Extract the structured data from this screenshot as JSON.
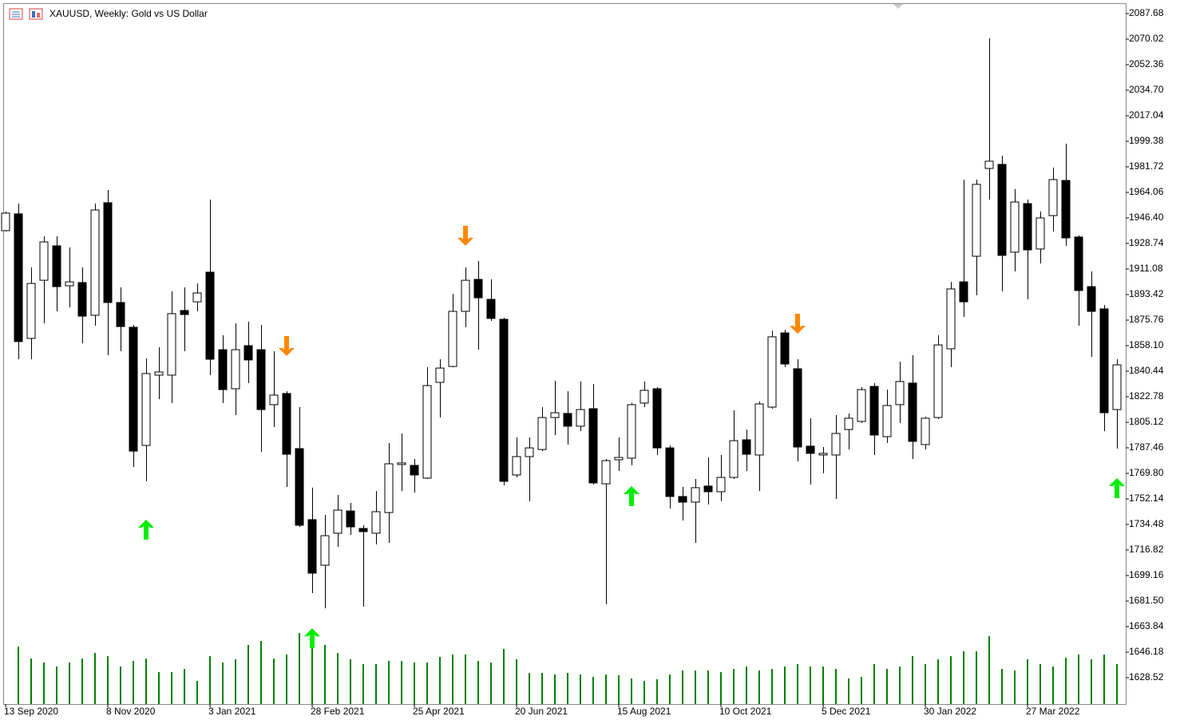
{
  "chart_data": {
    "type": "candlestick",
    "title": "XAUUSD, Weekly:  Gold vs US Dollar",
    "categories": [
      "13 Sep 2020",
      null,
      null,
      null,
      null,
      null,
      null,
      null,
      "8 Nov 2020",
      null,
      null,
      null,
      null,
      null,
      null,
      null,
      "3 Jan 2021",
      null,
      null,
      null,
      null,
      null,
      null,
      null,
      "28 Feb 2021",
      null,
      null,
      null,
      null,
      null,
      null,
      null,
      "25 Apr 2021",
      null,
      null,
      null,
      null,
      null,
      null,
      null,
      "20 Jun 2021",
      null,
      null,
      null,
      null,
      null,
      null,
      null,
      "15 Aug 2021",
      null,
      null,
      null,
      null,
      null,
      null,
      null,
      "10 Oct 2021",
      null,
      null,
      null,
      null,
      null,
      null,
      null,
      "5 Dec 2021",
      null,
      null,
      null,
      null,
      null,
      null,
      null,
      "30 Jan 2022",
      null,
      null,
      null,
      null,
      null,
      null,
      null,
      "27 Mar 2022",
      null,
      null,
      null,
      null,
      null,
      null,
      null
    ],
    "open": [
      1937.6,
      1949.2,
      1863.1,
      1903.3,
      1927.1,
      1899.5,
      1901.7,
      1879.1,
      1956.9,
      1887.9,
      1870.8,
      1789.1,
      1837.7,
      1837.7,
      1882.4,
      1888.4,
      1908.9,
      1855.3,
      1828.3,
      1858.1,
      1855.3,
      1817.3,
      1825.0,
      1786.9,
      1737.8,
      1706.3,
      1728.4,
      1743.8,
      1731.7,
      1728.4,
      1742.7,
      1775.9,
      1775.3,
      1766.5,
      1832.7,
      1843.7,
      1881.8,
      1903.9,
      1890.1,
      1876.3,
      1768.7,
      1781.4,
      1786.3,
      1808.4,
      1811.2,
      1802.4,
      1814.5,
      1762.6,
      1779.2,
      1780.3,
      1818.4,
      1828.3,
      1787.4,
      1753.8,
      1749.9,
      1761.0,
      1757.1,
      1767.0,
      1793.0,
      1782.5,
      1815.6,
      1866.9,
      1842.1,
      1788.6,
      1782.5,
      1782.5,
      1800.1,
      1805.7,
      1829.9,
      1795.2,
      1817.3,
      1832.2,
      1789.7,
      1808.4,
      1855.9,
      1902.2,
      1919.9,
      1980.6,
      1983.4,
      1922.7,
      1956.3,
      1924.9,
      1948.0,
      1972.3,
      1933.2,
      1898.9,
      1883.5,
      1813.9
    ],
    "high": [
      1950.8,
      1956.3,
      1912.2,
      1933.7,
      1933.7,
      1926.0,
      1912.2,
      1956.3,
      1965.7,
      1898.4,
      1872.4,
      1849.3,
      1857.0,
      1895.6,
      1898.4,
      1901.1,
      1959.1,
      1865.3,
      1873.5,
      1874.6,
      1872.4,
      1854.2,
      1826.6,
      1815.6,
      1759.9,
      1741.1,
      1754.9,
      1749.4,
      1733.9,
      1757.6,
      1790.8,
      1797.4,
      1779.7,
      1843.2,
      1848.7,
      1894.0,
      1912.2,
      1916.6,
      1903.9,
      1877.4,
      1794.6,
      1794.6,
      1815.6,
      1833.8,
      1826.6,
      1833.3,
      1831.6,
      1779.7,
      1794.6,
      1818.4,
      1833.3,
      1829.4,
      1789.1,
      1760.4,
      1765.9,
      1780.8,
      1782.5,
      1813.4,
      1800.1,
      1819.5,
      1868.6,
      1869.1,
      1848.7,
      1807.9,
      1788.0,
      1810.1,
      1811.2,
      1829.4,
      1832.2,
      1827.7,
      1847.0,
      1851.5,
      1809.0,
      1865.3,
      1902.2,
      1972.9,
      1972.9,
      2070.6,
      1989.4,
      1966.3,
      1959.1,
      1950.8,
      1981.2,
      1997.7,
      1934.3,
      1909.4,
      1886.2,
      1848.7
    ],
    "low": [
      1937.0,
      1848.7,
      1848.7,
      1873.5,
      1881.8,
      1884.6,
      1859.7,
      1871.9,
      1851.5,
      1854.2,
      1774.2,
      1764.3,
      1821.1,
      1818.4,
      1854.2,
      1881.8,
      1837.7,
      1818.4,
      1810.1,
      1832.2,
      1784.7,
      1801.8,
      1760.4,
      1732.8,
      1687.0,
      1676.5,
      1719.0,
      1727.3,
      1677.6,
      1720.7,
      1721.8,
      1757.6,
      1756.5,
      1765.9,
      1808.4,
      1843.2,
      1870.8,
      1855.3,
      1875.2,
      1761.5,
      1767.0,
      1750.5,
      1785.2,
      1796.3,
      1789.7,
      1799.0,
      1762.1,
      1679.3,
      1771.4,
      1775.3,
      1815.6,
      1782.5,
      1745.5,
      1737.2,
      1721.8,
      1748.3,
      1750.5,
      1765.9,
      1771.4,
      1757.6,
      1814.5,
      1843.2,
      1778.1,
      1762.1,
      1769.8,
      1752.1,
      1786.3,
      1804.6,
      1782.5,
      1790.8,
      1804.6,
      1779.7,
      1786.3,
      1807.3,
      1843.2,
      1878.0,
      1892.9,
      1959.1,
      1895.6,
      1909.4,
      1890.1,
      1914.9,
      1937.0,
      1927.1,
      1871.9,
      1850.4,
      1799.0,
      1786.9
    ],
    "close": [
      1949.7,
      1860.9,
      1901.1,
      1929.8,
      1898.9,
      1902.2,
      1878.5,
      1951.9,
      1887.9,
      1871.3,
      1785.2,
      1838.8,
      1839.9,
      1880.2,
      1879.6,
      1894.5,
      1848.7,
      1827.7,
      1855.3,
      1848.2,
      1813.9,
      1823.9,
      1783.0,
      1733.9,
      1700.8,
      1726.7,
      1744.4,
      1732.8,
      1729.5,
      1743.3,
      1776.4,
      1777.0,
      1768.7,
      1830.5,
      1842.6,
      1881.8,
      1903.3,
      1891.2,
      1876.9,
      1764.3,
      1781.4,
      1787.4,
      1808.4,
      1811.7,
      1802.4,
      1813.9,
      1763.2,
      1778.6,
      1780.8,
      1817.3,
      1827.2,
      1787.4,
      1753.8,
      1749.9,
      1759.9,
      1757.1,
      1767.0,
      1792.4,
      1783.0,
      1817.8,
      1864.2,
      1845.4,
      1788.0,
      1783.6,
      1783.6,
      1797.4,
      1807.9,
      1827.7,
      1796.3,
      1816.7,
      1833.3,
      1791.9,
      1807.9,
      1858.6,
      1897.3,
      1888.4,
      1969.6,
      1985.6,
      1920.5,
      1957.4,
      1924.3,
      1946.4,
      1972.9,
      1932.6,
      1896.2,
      1881.8,
      1811.7,
      1844.8
    ],
    "volume": [
      null,
      72,
      57,
      52,
      47,
      52,
      57,
      64,
      60,
      47,
      54,
      57,
      40,
      40,
      44,
      29,
      60,
      52,
      56,
      74,
      79,
      57,
      62,
      89,
      92,
      74,
      64,
      56,
      50,
      50,
      54,
      54,
      52,
      52,
      59,
      62,
      62,
      54,
      52,
      69,
      56,
      39,
      39,
      37,
      39,
      37,
      34,
      37,
      36,
      32,
      29,
      31,
      37,
      42,
      42,
      42,
      40,
      44,
      47,
      42,
      44,
      47,
      50,
      47,
      47,
      44,
      32,
      34,
      50,
      44,
      47,
      60,
      50,
      56,
      60,
      66,
      66,
      85,
      44,
      42,
      56,
      50,
      47,
      58,
      62,
      56,
      62,
      50
    ],
    "buy_signals": [
      null,
      null,
      null,
      null,
      null,
      null,
      null,
      null,
      null,
      null,
      null,
      1730.6,
      null,
      null,
      null,
      null,
      null,
      null,
      null,
      null,
      null,
      null,
      null,
      null,
      1655.5,
      null,
      null,
      null,
      null,
      null,
      null,
      null,
      null,
      null,
      null,
      null,
      null,
      null,
      null,
      null,
      null,
      null,
      null,
      null,
      null,
      null,
      null,
      null,
      null,
      1753.8,
      null,
      null,
      null,
      null,
      null,
      null,
      null,
      null,
      null,
      null,
      null,
      null,
      null,
      null,
      null,
      null,
      null,
      null,
      null,
      null,
      null,
      null,
      null,
      null,
      null,
      null,
      null,
      null,
      null,
      null,
      null,
      null,
      null,
      null,
      null,
      null,
      null,
      1759.3
    ],
    "sell_signals": [
      null,
      null,
      null,
      null,
      null,
      null,
      null,
      null,
      null,
      null,
      null,
      null,
      null,
      null,
      null,
      null,
      null,
      null,
      null,
      null,
      null,
      null,
      1858.1,
      null,
      null,
      null,
      null,
      null,
      null,
      null,
      null,
      null,
      null,
      null,
      null,
      null,
      1934.3,
      null,
      null,
      null,
      null,
      null,
      null,
      null,
      null,
      null,
      null,
      null,
      null,
      null,
      null,
      null,
      null,
      null,
      null,
      null,
      null,
      null,
      null,
      null,
      null,
      null,
      1873.5,
      null,
      null,
      null,
      null,
      null,
      null,
      null,
      null,
      null,
      null,
      null,
      null,
      null,
      null,
      null,
      null,
      null,
      null,
      null,
      null,
      null,
      null,
      null,
      null,
      null
    ],
    "ylim": [
      1610.3,
      2094.85
    ],
    "y2lim": [
      0,
      100
    ],
    "yticks": [
      2087.68,
      2070.02,
      2052.36,
      {
        "value": 2034.7,
        "label": "2034.70"
      },
      2017.04,
      1999.38,
      1981.72,
      1964.06,
      {
        "value": 1946.4,
        "label": "1946.40"
      },
      1928.74,
      1911.08,
      1893.42,
      1875.76,
      {
        "value": 1858.1,
        "label": "1858.10"
      },
      1840.44,
      1822.78,
      1805.12,
      1787.46,
      {
        "value": 1769.8,
        "label": "1769.80"
      },
      1752.14,
      1734.48,
      1716.82,
      1699.16,
      {
        "value": 1681.5,
        "label": "1681.50"
      },
      1663.84,
      1646.18,
      1628.52
    ],
    "colors": {
      "bull": "#ffffff",
      "bear": "#000000",
      "volume": "#008000",
      "buy": "#00ee00",
      "sell": "#ff8800"
    }
  }
}
